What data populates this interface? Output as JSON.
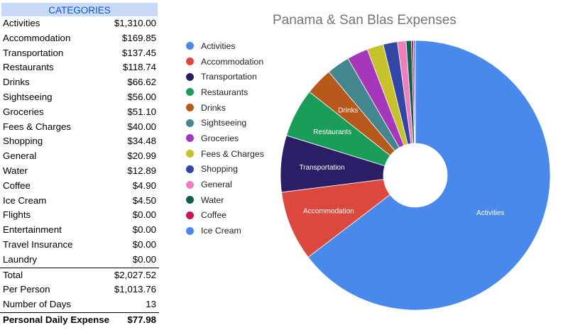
{
  "table": {
    "header": "CATEGORIES",
    "rows": [
      {
        "label": "Activities",
        "amount": "$1,310.00"
      },
      {
        "label": "Accommodation",
        "amount": "$169.85"
      },
      {
        "label": "Transportation",
        "amount": "$137.45"
      },
      {
        "label": "Restaurants",
        "amount": "$118.74"
      },
      {
        "label": "Drinks",
        "amount": "$66.62"
      },
      {
        "label": "Sightseeing",
        "amount": "$56.00"
      },
      {
        "label": "Groceries",
        "amount": "$51.10"
      },
      {
        "label": "Fees & Charges",
        "amount": "$40.00"
      },
      {
        "label": "Shopping",
        "amount": "$34.48"
      },
      {
        "label": "General",
        "amount": "$20.99"
      },
      {
        "label": "Water",
        "amount": "$12.89"
      },
      {
        "label": "Coffee",
        "amount": "$4.90"
      },
      {
        "label": "Ice Cream",
        "amount": "$4.50"
      },
      {
        "label": "Flights",
        "amount": "$0.00"
      },
      {
        "label": "Entertainment",
        "amount": "$0.00"
      },
      {
        "label": "Travel Insurance",
        "amount": "$0.00"
      },
      {
        "label": "Laundry",
        "amount": "$0.00"
      }
    ],
    "total": {
      "label": "Total",
      "amount": "$2,027.52"
    },
    "per_person": {
      "label": "Per Person",
      "amount": "$1,013.76"
    },
    "days": {
      "label": "Number of Days",
      "amount": "13"
    },
    "daily": {
      "label": "Personal Daily Expense",
      "amount": "$77.98"
    }
  },
  "chart_data": {
    "type": "pie",
    "title": "Panama & San Blas Expenses",
    "donut": true,
    "slices": [
      {
        "label": "Activities",
        "value": 1310.0,
        "color": "#4a89ec",
        "data_label": "Activities"
      },
      {
        "label": "Accommodation",
        "value": 169.85,
        "color": "#dc483d",
        "data_label": "Accommodation"
      },
      {
        "label": "Transportation",
        "value": 137.45,
        "color": "#2b1e66",
        "data_label": "Transportation"
      },
      {
        "label": "Restaurants",
        "value": 118.74,
        "color": "#199d58",
        "data_label": "Restaurants"
      },
      {
        "label": "Drinks",
        "value": 66.62,
        "color": "#b7591c",
        "data_label": "Drinks"
      },
      {
        "label": "Sightseeing",
        "value": 56.0,
        "color": "#43868d",
        "data_label": ""
      },
      {
        "label": "Groceries",
        "value": 51.1,
        "color": "#a637bb",
        "data_label": ""
      },
      {
        "label": "Fees & Charges",
        "value": 40.0,
        "color": "#c7c12c",
        "data_label": ""
      },
      {
        "label": "Shopping",
        "value": 34.48,
        "color": "#3346a7",
        "data_label": ""
      },
      {
        "label": "General",
        "value": 20.99,
        "color": "#ee7fbc",
        "data_label": ""
      },
      {
        "label": "Water",
        "value": 12.89,
        "color": "#0e5f4b",
        "data_label": ""
      },
      {
        "label": "Coffee",
        "value": 4.9,
        "color": "#c2185b",
        "data_label": ""
      },
      {
        "label": "Ice Cream",
        "value": 4.5,
        "color": "#4a89ec",
        "data_label": ""
      }
    ],
    "legend_position": "left"
  }
}
